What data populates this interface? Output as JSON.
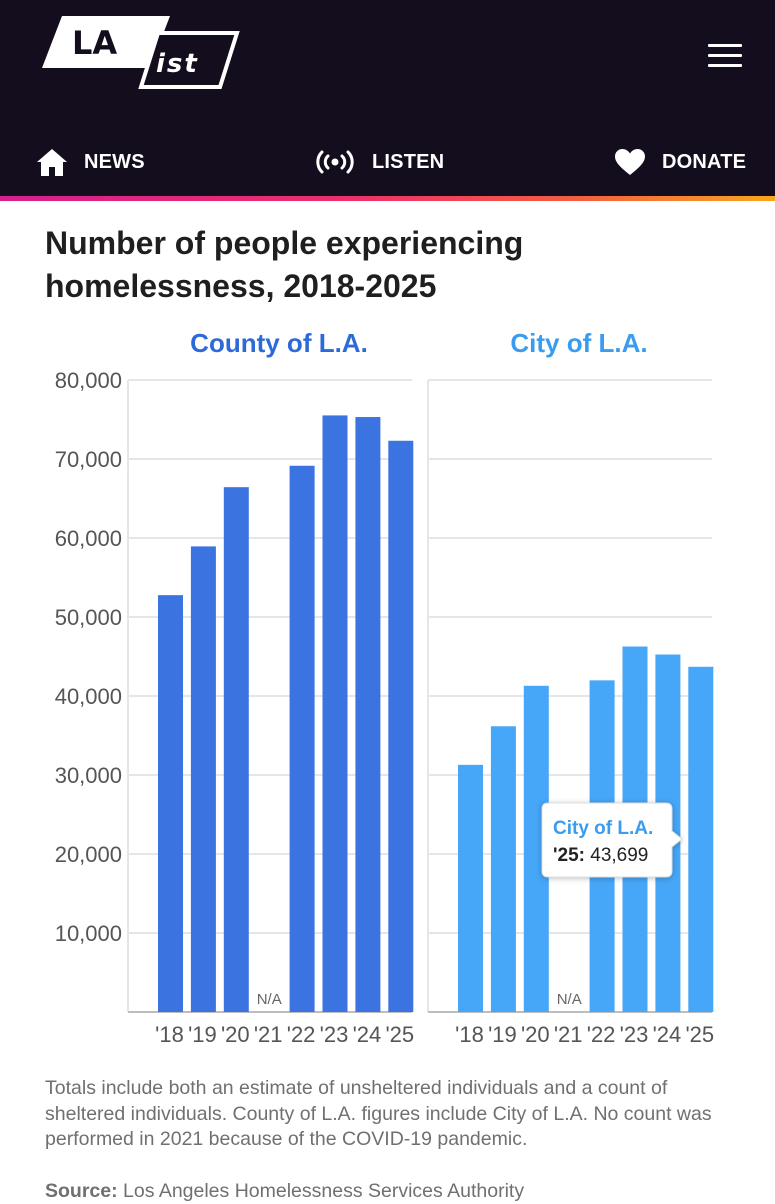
{
  "header": {
    "logo_top": "LA",
    "logo_bottom": "ist",
    "nav": {
      "news_label": "NEWS",
      "listen_label": "LISTEN",
      "donate_label": "DONATE"
    }
  },
  "colors": {
    "county": "#3b74e0",
    "city": "#46a6f7",
    "header_bg": "#130d1d"
  },
  "chart_data": {
    "type": "bar",
    "title": "Number of people experiencing homelessness, 2018-2025",
    "categories": [
      "'18",
      "'19",
      "'20",
      "'21",
      "'22",
      "'23",
      "'24",
      "'25"
    ],
    "ylim": [
      0,
      80000
    ],
    "yticks": [
      "10,000",
      "20,000",
      "30,000",
      "40,000",
      "50,000",
      "60,000",
      "70,000",
      "80,000"
    ],
    "series": [
      {
        "name": "County of L.A.",
        "values": [
          52765,
          58936,
          66433,
          null,
          69144,
          75518,
          75312,
          72308
        ]
      },
      {
        "name": "City of L.A.",
        "values": [
          31285,
          36165,
          41290,
          null,
          41980,
          46260,
          45252,
          43699
        ]
      }
    ],
    "missing_label": "N/A",
    "tooltip": {
      "series": "City of L.A.",
      "year_label": "'25:",
      "value_label": "43,699"
    }
  },
  "note": "Totals include both an estimate of unsheltered individuals and a count of sheltered individuals. County of L.A. figures include City of L.A. No count was performed in 2021 because of the COVID-19 pandemic.",
  "source": {
    "label": "Source:",
    "text": "Los Angeles Homelessness Services Authority"
  }
}
